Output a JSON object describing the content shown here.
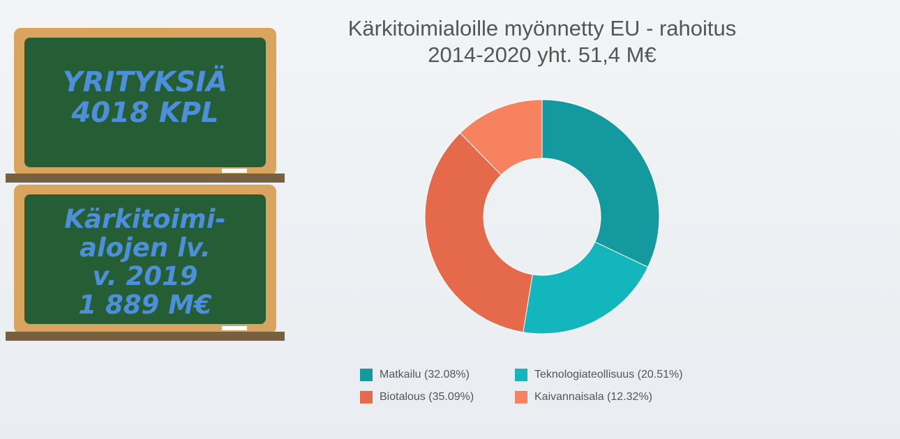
{
  "boards": [
    {
      "lines": [
        "YRITYKSIÄ",
        "4018 KPL"
      ]
    },
    {
      "lines": [
        "Kärkitoimi-",
        "alojen lv.",
        "v. 2019",
        "1 889  M€"
      ]
    }
  ],
  "chart_data": {
    "type": "donut",
    "title": "Kärkitoimialoille myönnetty EU - rahoitus 2014-2020 yht. 51,4 M€",
    "categories": [
      "Matkailu (32.08%)",
      "Teknologiateollisuus (20.51%)",
      "Biotalous (35.09%)",
      "Kaivannaisala (12.32%)"
    ],
    "values": [
      32.08,
      20.51,
      35.09,
      12.32
    ],
    "colors": [
      "#14999e",
      "#13b6bd",
      "#e46a4b",
      "#f7825f"
    ]
  }
}
